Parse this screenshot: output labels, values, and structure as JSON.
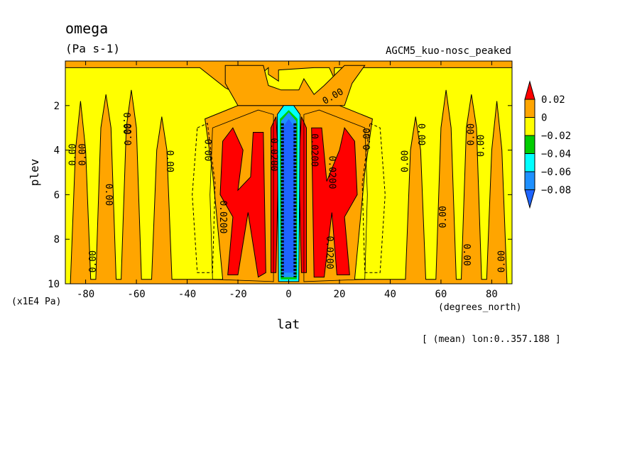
{
  "chart_data": {
    "type": "heatmap",
    "title": "omega",
    "units": "(Pa s-1)",
    "subtitle": "AGCM5_kuo-nosc_peaked",
    "xlabel": "lat",
    "xunits": "(degrees_north)",
    "ylabel": "plev",
    "yunits": "(x1E4 Pa)",
    "footnote": "[ (mean) lon:0..357.188 ]",
    "xlim": [
      -88,
      88
    ],
    "ylim": [
      10,
      0
    ],
    "xticks": [
      "-80",
      "-60",
      "-40",
      "-20",
      "0",
      "20",
      "40",
      "60",
      "80"
    ],
    "yticks": [
      "2",
      "4",
      "6",
      "8",
      "10"
    ],
    "legend": {
      "placement": "right",
      "labels": [
        "0.02",
        "0",
        "−0.02",
        "−0.04",
        "−0.06",
        "−0.08"
      ],
      "colors": [
        "#ff0000",
        "#ffa500",
        "#ffff00",
        "#00cd00",
        "#00ffff",
        "#1e90ff",
        "#1e64ff"
      ]
    },
    "contour_labels": [
      {
        "text": "0.00",
        "lat": -84,
        "plev": 4.2,
        "rotate": -90
      },
      {
        "text": "0.00",
        "lat": -80,
        "plev": 4.2,
        "rotate": -90
      },
      {
        "text": "0.00",
        "lat": -76,
        "plev": 9.0,
        "rotate": -90
      },
      {
        "text": "0.00",
        "lat": -72,
        "plev": 6.0,
        "rotate": 90
      },
      {
        "text": "0.00",
        "lat": -65,
        "plev": 2.8,
        "rotate": 90
      },
      {
        "text": "0.00",
        "lat": -62,
        "plev": 3.3,
        "rotate": -90
      },
      {
        "text": "0.00",
        "lat": -48,
        "plev": 4.5,
        "rotate": 90
      },
      {
        "text": "0.00",
        "lat": -33,
        "plev": 4.0,
        "rotate": 90
      },
      {
        "text": "0.0200",
        "lat": -27,
        "plev": 7.0,
        "rotate": 90
      },
      {
        "text": "0.0200",
        "lat": -7,
        "plev": 4.2,
        "rotate": 90
      },
      {
        "text": "0.0200",
        "lat": 9,
        "plev": 4.0,
        "rotate": 90
      },
      {
        "text": "0.0200",
        "lat": 16,
        "plev": 5.0,
        "rotate": 90
      },
      {
        "text": "0.0200",
        "lat": 15,
        "plev": 8.6,
        "rotate": 90
      },
      {
        "text": "0.00",
        "lat": 18,
        "plev": 1.7,
        "rotate": -30
      },
      {
        "text": "0.00",
        "lat": 32,
        "plev": 3.5,
        "rotate": -90
      },
      {
        "text": "0.00",
        "lat": 47,
        "plev": 4.5,
        "rotate": -90
      },
      {
        "text": "0.00",
        "lat": 51,
        "plev": 3.3,
        "rotate": 90
      },
      {
        "text": "0.00",
        "lat": 62,
        "plev": 7.0,
        "rotate": -90
      },
      {
        "text": "0.00",
        "lat": 69,
        "plev": 8.7,
        "rotate": 90
      },
      {
        "text": "0.00",
        "lat": 73,
        "plev": 3.3,
        "rotate": -90
      },
      {
        "text": "0.00",
        "lat": 77,
        "plev": 3.8,
        "rotate": -90
      },
      {
        "text": "0.00",
        "lat": 85,
        "plev": 9.0,
        "rotate": -90
      }
    ],
    "regions_positive_max": [
      {
        "lat": [
          -28,
          -8
        ],
        "plev": [
          3,
          9.8
        ],
        "level": "0.02"
      },
      {
        "lat": [
          8,
          26
        ],
        "plev": [
          3,
          9.8
        ],
        "level": "0.02"
      }
    ],
    "regions_negative_min": [
      {
        "lat": [
          -3,
          3
        ],
        "plev": [
          2.1,
          9.8
        ],
        "level": "−0.08"
      }
    ]
  }
}
